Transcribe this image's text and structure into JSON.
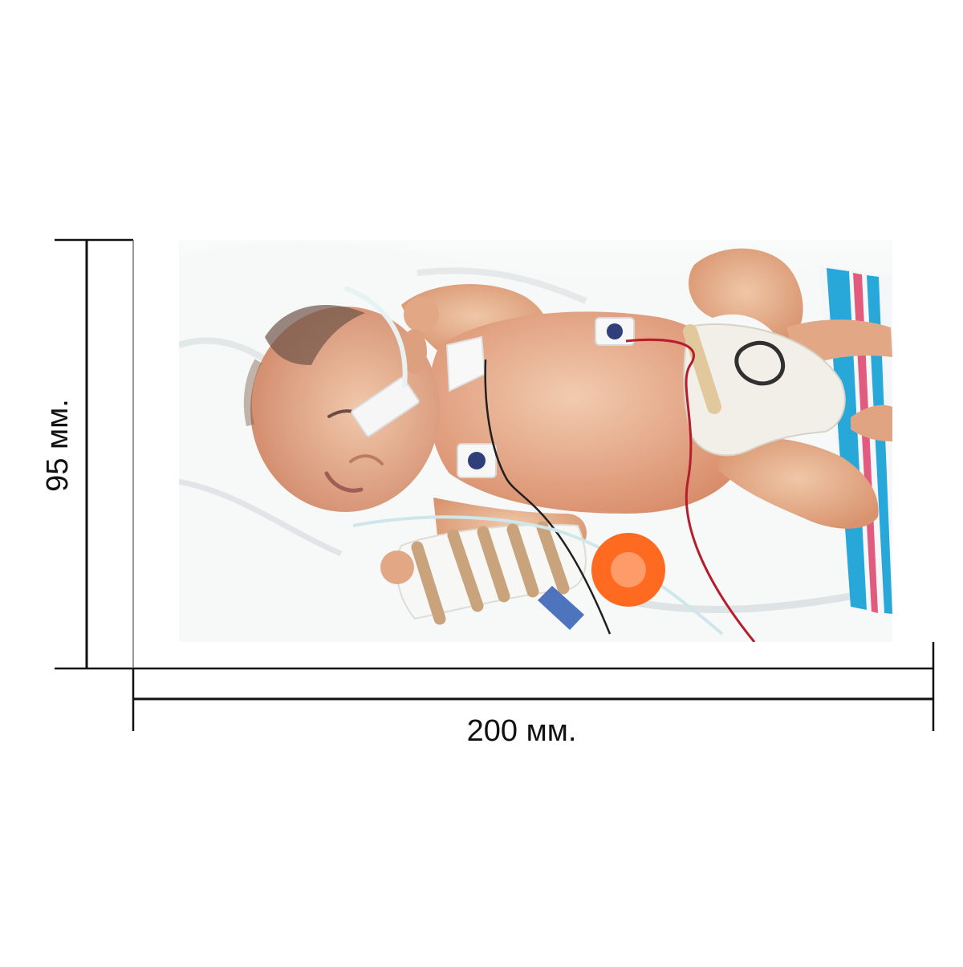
{
  "dimensions": {
    "height_label": "95 мм.",
    "width_label": "200 мм."
  },
  "photo": {
    "subject": "newborn-in-hospital-bed",
    "colors": {
      "blanket": "#f3f4f3",
      "skin": "#e7b18f",
      "diaper": "#f2efe9",
      "pacifier": "#ff6a21",
      "tape": "#c9a37c",
      "stripe_blue": "#28a8d9",
      "stripe_pink": "#e05b7d"
    }
  }
}
